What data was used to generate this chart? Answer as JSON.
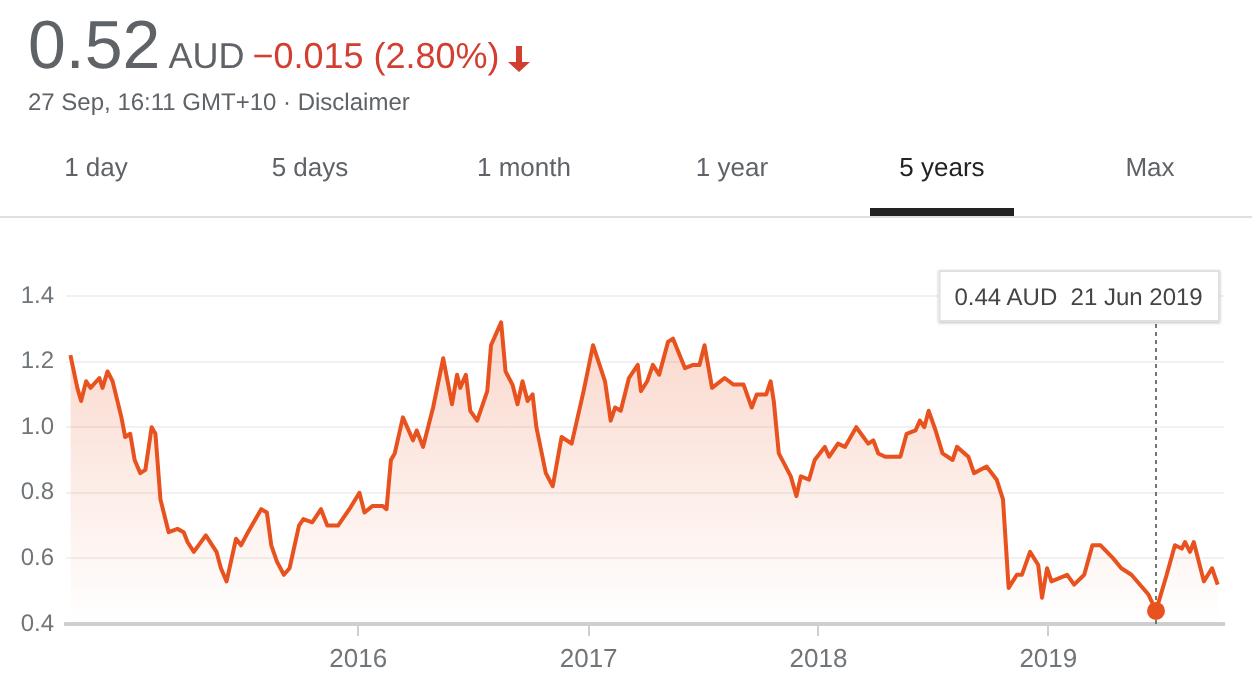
{
  "chart_data": {
    "type": "area",
    "title": "0.52",
    "subtitle": "27 Sep, 16:11 GMT+10 · Disclaimer",
    "annotations": [
      "AUD",
      "−0.015 (2.80%)",
      "1 day",
      "5 days",
      "1 month",
      "1 year",
      "5 years",
      "Max"
    ],
    "ref_lines": [
      {
        "axis": "x",
        "value": "2019-06-21",
        "label": "0.44 AUD  21 Jun 2019",
        "line_style": "dotted",
        "color": "#757575"
      }
    ],
    "xlim": [
      "2014-09-24",
      "2019-10-07"
    ],
    "xticks": [
      {
        "value": "2016-01-01",
        "label": "2016"
      },
      {
        "value": "2017-01-01",
        "label": "2017"
      },
      {
        "value": "2018-01-01",
        "label": "2018"
      },
      {
        "value": "2019-01-01",
        "label": "2019"
      }
    ],
    "ylim": [
      0.4,
      1.4
    ],
    "yticks": [
      0.4,
      0.6,
      0.8,
      {
        "value": 1,
        "label": "1.0"
      },
      1.2,
      1.4
    ],
    "grid": "y",
    "legend": false,
    "series": [
      {
        "color": "#e8521f",
        "x": [
          "2014-10-01",
          "2014-10-12",
          "2014-10-18",
          "2014-10-26",
          "2014-11-02",
          "2014-11-16",
          "2014-11-21",
          "2014-11-29",
          "2014-12-07",
          "2014-12-21",
          "2014-12-27",
          "2015-01-04",
          "2015-01-11",
          "2015-01-20",
          "2015-01-28",
          "2015-02-07",
          "2015-02-13",
          "2015-02-21",
          "2015-03-06",
          "2015-03-20",
          "2015-03-30",
          "2015-04-05",
          "2015-04-15",
          "2015-05-04",
          "2015-05-21",
          "2015-05-28",
          "2015-06-06",
          "2015-06-21",
          "2015-06-29",
          "2015-07-10",
          "2015-07-31",
          "2015-08-09",
          "2015-08-16",
          "2015-08-25",
          "2015-09-05",
          "2015-09-14",
          "2015-09-29",
          "2015-10-06",
          "2015-10-20",
          "2015-11-03",
          "2015-11-13",
          "2015-11-30",
          "2015-12-18",
          "2016-01-03",
          "2016-01-11",
          "2016-01-24",
          "2016-02-09",
          "2016-02-15",
          "2016-02-22",
          "2016-02-28",
          "2016-03-12",
          "2016-03-28",
          "2016-04-03",
          "2016-04-13",
          "2016-04-29",
          "2016-05-15",
          "2016-05-29",
          "2016-06-06",
          "2016-06-11",
          "2016-06-20",
          "2016-06-27",
          "2016-07-08",
          "2016-07-24",
          "2016-07-30",
          "2016-08-15",
          "2016-08-22",
          "2016-09-02",
          "2016-09-10",
          "2016-09-18",
          "2016-09-26",
          "2016-10-04",
          "2016-10-10",
          "2016-10-25",
          "2016-11-05",
          "2016-11-19",
          "2016-12-05",
          "2016-12-24",
          "2017-01-08",
          "2017-01-27",
          "2017-02-05",
          "2017-02-12",
          "2017-02-21",
          "2017-03-06",
          "2017-03-20",
          "2017-03-25",
          "2017-04-04",
          "2017-04-13",
          "2017-04-23",
          "2017-05-07",
          "2017-05-15",
          "2017-06-03",
          "2017-06-16",
          "2017-06-26",
          "2017-07-04",
          "2017-07-16",
          "2017-08-05",
          "2017-08-19",
          "2017-09-04",
          "2017-09-17",
          "2017-09-25",
          "2017-10-10",
          "2017-10-17",
          "2017-10-22",
          "2017-10-30",
          "2017-11-18",
          "2017-11-27",
          "2017-12-04",
          "2017-12-17",
          "2017-12-26",
          "2018-01-11",
          "2018-01-18",
          "2018-02-01",
          "2018-02-12",
          "2018-03-02",
          "2018-03-21",
          "2018-03-29",
          "2018-04-06",
          "2018-04-17",
          "2018-05-11",
          "2018-05-21",
          "2018-06-04",
          "2018-06-11",
          "2018-06-18",
          "2018-06-25",
          "2018-07-06",
          "2018-07-17",
          "2018-08-02",
          "2018-08-09",
          "2018-08-27",
          "2018-09-05",
          "2018-09-25",
          "2018-10-11",
          "2018-10-21",
          "2018-10-30",
          "2018-11-12",
          "2018-11-20",
          "2018-12-03",
          "2018-12-16",
          "2018-12-22",
          "2018-12-30",
          "2019-01-06",
          "2019-01-31",
          "2019-02-11",
          "2019-02-27",
          "2019-03-12",
          "2019-03-25",
          "2019-04-14",
          "2019-04-27",
          "2019-05-13",
          "2019-06-09",
          "2019-06-21",
          "2019-07-08",
          "2019-07-21",
          "2019-08-01",
          "2019-08-06",
          "2019-08-14",
          "2019-08-20",
          "2019-09-05",
          "2019-09-18",
          "2019-09-27"
        ],
        "values": [
          1.22,
          1.12,
          1.08,
          1.14,
          1.12,
          1.15,
          1.12,
          1.17,
          1.14,
          1.03,
          0.97,
          0.98,
          0.9,
          0.86,
          0.87,
          1.0,
          0.98,
          0.78,
          0.68,
          0.69,
          0.68,
          0.65,
          0.62,
          0.67,
          0.62,
          0.57,
          0.53,
          0.66,
          0.64,
          0.68,
          0.75,
          0.74,
          0.64,
          0.59,
          0.55,
          0.57,
          0.7,
          0.72,
          0.71,
          0.75,
          0.7,
          0.7,
          0.75,
          0.8,
          0.74,
          0.76,
          0.76,
          0.75,
          0.9,
          0.92,
          1.03,
          0.96,
          0.99,
          0.94,
          1.06,
          1.21,
          1.07,
          1.16,
          1.12,
          1.16,
          1.05,
          1.02,
          1.11,
          1.25,
          1.32,
          1.17,
          1.13,
          1.07,
          1.14,
          1.08,
          1.1,
          1.0,
          0.86,
          0.82,
          0.97,
          0.95,
          1.11,
          1.25,
          1.14,
          1.02,
          1.06,
          1.05,
          1.15,
          1.19,
          1.11,
          1.14,
          1.19,
          1.16,
          1.26,
          1.27,
          1.18,
          1.19,
          1.19,
          1.25,
          1.12,
          1.15,
          1.13,
          1.13,
          1.06,
          1.1,
          1.1,
          1.14,
          1.08,
          0.92,
          0.85,
          0.79,
          0.85,
          0.84,
          0.9,
          0.94,
          0.91,
          0.95,
          0.94,
          1.0,
          0.95,
          0.96,
          0.92,
          0.91,
          0.91,
          0.98,
          0.99,
          1.02,
          1.0,
          1.05,
          0.99,
          0.92,
          0.9,
          0.94,
          0.91,
          0.86,
          0.88,
          0.84,
          0.78,
          0.51,
          0.55,
          0.55,
          0.62,
          0.58,
          0.48,
          0.57,
          0.53,
          0.55,
          0.52,
          0.55,
          0.64,
          0.64,
          0.6,
          0.57,
          0.55,
          0.49,
          0.44,
          0.55,
          0.64,
          0.63,
          0.65,
          0.62,
          0.65,
          0.53,
          0.57,
          0.52
        ]
      }
    ]
  }
}
